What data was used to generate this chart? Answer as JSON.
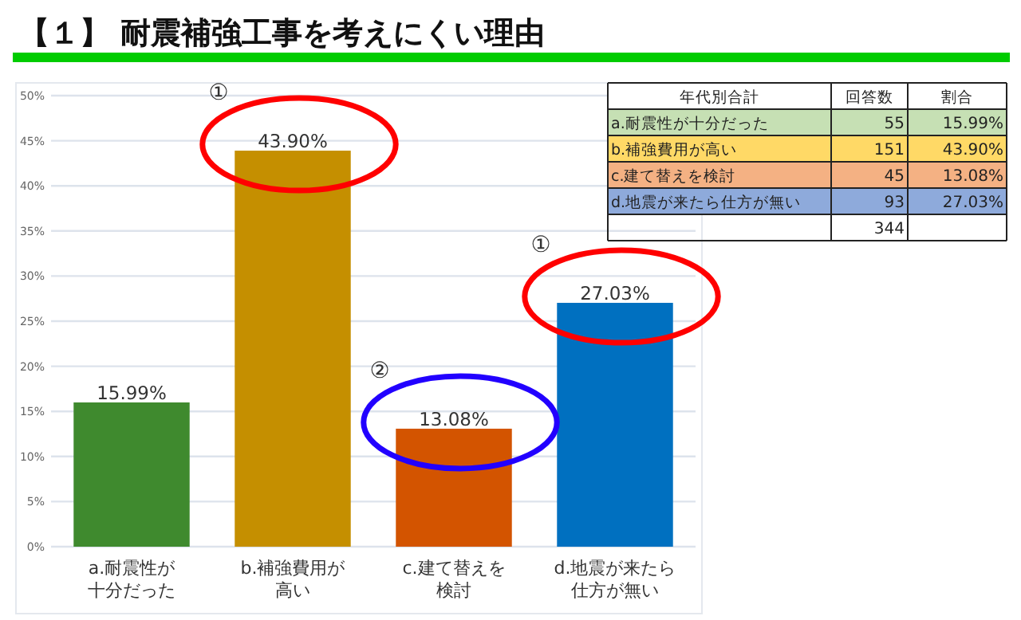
{
  "chart_data": [
    {
      "type": "bar",
      "title": "【１】 耐震補強工事を考えにくい理由",
      "categories": [
        "a.耐震性が十分だった",
        "b.補強費用が高い",
        "c.建て替えを検討",
        "d.地震が来たら仕方が無い"
      ],
      "values": [
        15.99,
        43.9,
        13.08,
        27.03
      ],
      "colors": [
        "#3f8a2e",
        "#c58f00",
        "#d35400",
        "#0070c0"
      ],
      "value_labels": [
        "15.99%",
        "43.90%",
        "13.08%",
        "27.03%"
      ],
      "ylim": [
        0,
        50
      ],
      "yticks": [
        {
          "value": 0,
          "label": "0%"
        },
        {
          "value": 5,
          "label": "5%"
        },
        {
          "value": 10,
          "label": "10%"
        },
        {
          "value": 15,
          "label": "15%"
        },
        {
          "value": 20,
          "label": "20%"
        },
        {
          "value": 25,
          "label": "25%"
        },
        {
          "value": 30,
          "label": "30%"
        },
        {
          "value": 35,
          "label": "35%"
        },
        {
          "value": 40,
          "label": "40%"
        },
        {
          "value": 45,
          "label": "45%"
        },
        {
          "value": 50,
          "label": "50%"
        }
      ],
      "grid": "y",
      "annotations": [
        "①",
        "②",
        "①"
      ]
    },
    {
      "type": "other",
      "title": "年代別合計",
      "categories": [
        "a.耐震性が十分だった",
        "b.補強費用が高い",
        "c.建て替えを検討",
        "d.地震が来たら仕方が無い"
      ],
      "colors": [
        "#c6e0b4",
        "#ffd966",
        "#f4b183",
        "#8eaadb"
      ],
      "series": [
        {
          "name": "回答数",
          "values": [
            55,
            151,
            45,
            93
          ],
          "colors": [
            "#c6e0b4",
            "#ffd966",
            "#f4b183",
            "#8eaadb"
          ]
        },
        {
          "name": "割合",
          "values": [
            15.99,
            43.9,
            13.08,
            27.03
          ],
          "value_labels": [
            "15.99%",
            "43.90%",
            "13.08%",
            "27.03%"
          ],
          "colors": [
            "#c6e0b4",
            "#ffd966",
            "#f4b183",
            "#8eaadb"
          ]
        }
      ],
      "data_labels": true,
      "totals": [
        "344"
      ]
    }
  ]
}
